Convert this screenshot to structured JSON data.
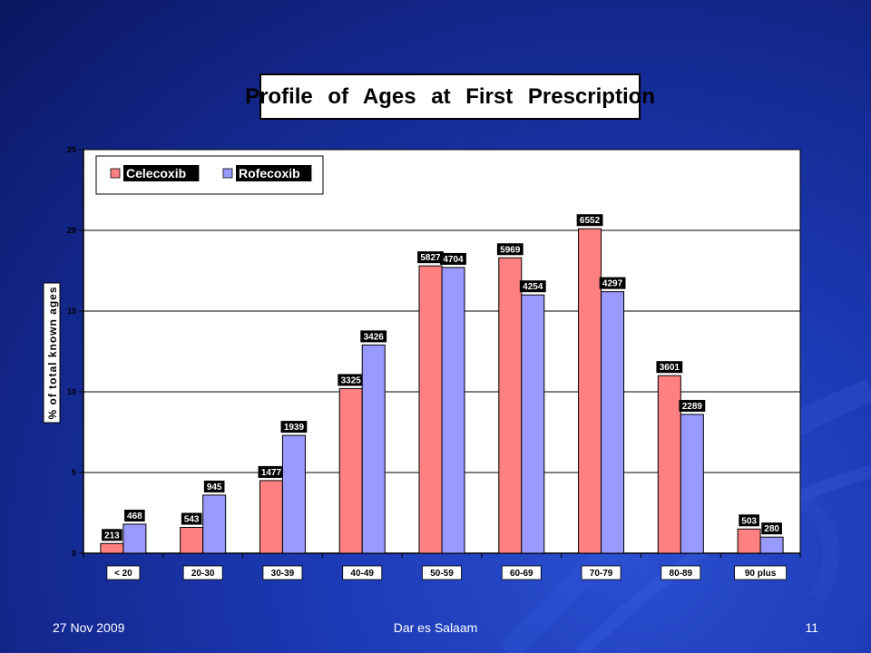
{
  "slide": {
    "footer_left": "27 Nov 2009",
    "footer_center": "Dar es Salaam",
    "footer_right": "11"
  },
  "colors": {
    "celecoxib": "#ff8080",
    "rofecoxib": "#9999ff",
    "plot_background": "#ffffff",
    "slide_background": "#1c39b4"
  },
  "chart_data": {
    "type": "bar",
    "title": "Profile of Ages at First Prescription",
    "xlabel": "",
    "ylabel": "% of total known ages",
    "ylim": [
      0,
      25
    ],
    "yticks": [
      0,
      5,
      10,
      15,
      20,
      25
    ],
    "grid": true,
    "legend_position": "top-left",
    "categories": [
      "< 20",
      "20-30",
      "30-39",
      "40-49",
      "50-59",
      "60-69",
      "70-79",
      "80-89",
      "90 plus"
    ],
    "series": [
      {
        "name": "Celecoxib",
        "values": [
          0.6,
          1.6,
          4.5,
          10.2,
          17.8,
          18.3,
          20.1,
          11.0,
          1.5
        ],
        "labels": [
          "213",
          "543",
          "1477",
          "3325",
          "5827",
          "5969",
          "6552",
          "3601",
          "503"
        ]
      },
      {
        "name": "Rofecoxib",
        "values": [
          1.8,
          3.6,
          7.3,
          12.9,
          17.7,
          16.0,
          16.2,
          8.6,
          1.0
        ],
        "labels": [
          "468",
          "945",
          "1939",
          "3426",
          "4704",
          "4254",
          "4297",
          "2289",
          "280"
        ]
      }
    ]
  }
}
